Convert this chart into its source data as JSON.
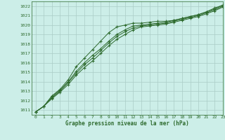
{
  "title": "Graphe pression niveau de la mer (hPa)",
  "bg_color": "#cceee8",
  "plot_bg_color": "#cceee8",
  "grid_color": "#aaccc6",
  "line_color": "#2d6a2d",
  "xlim": [
    -0.5,
    23
  ],
  "ylim": [
    1010.5,
    1022.5
  ],
  "yticks": [
    1011,
    1012,
    1013,
    1014,
    1015,
    1016,
    1017,
    1018,
    1019,
    1020,
    1021,
    1022
  ],
  "xticks": [
    0,
    1,
    2,
    3,
    4,
    5,
    6,
    7,
    8,
    9,
    10,
    11,
    12,
    13,
    14,
    15,
    16,
    17,
    18,
    19,
    20,
    21,
    22,
    23
  ],
  "lines": [
    [
      1010.8,
      1011.4,
      1012.5,
      1013.2,
      1014.2,
      1015.6,
      1016.5,
      1017.4,
      1018.3,
      1019.2,
      1019.8,
      1020.0,
      1020.2,
      1020.2,
      1020.3,
      1020.4,
      1020.4,
      1020.5,
      1020.7,
      1020.9,
      1021.1,
      1021.4,
      1021.8,
      1022.1
    ],
    [
      1010.8,
      1011.4,
      1012.4,
      1013.1,
      1014.0,
      1015.1,
      1016.0,
      1016.8,
      1017.5,
      1018.3,
      1019.0,
      1019.5,
      1019.9,
      1020.0,
      1020.1,
      1020.2,
      1020.3,
      1020.5,
      1020.7,
      1020.9,
      1021.1,
      1021.4,
      1021.7,
      1022.1
    ],
    [
      1010.8,
      1011.4,
      1012.3,
      1013.0,
      1013.9,
      1014.9,
      1015.8,
      1016.5,
      1017.3,
      1018.1,
      1018.8,
      1019.3,
      1019.7,
      1019.9,
      1020.0,
      1020.1,
      1020.2,
      1020.4,
      1020.6,
      1020.8,
      1021.0,
      1021.3,
      1021.6,
      1022.0
    ],
    [
      1010.8,
      1011.4,
      1012.2,
      1012.9,
      1013.7,
      1014.7,
      1015.5,
      1016.2,
      1017.0,
      1017.8,
      1018.5,
      1019.0,
      1019.5,
      1019.8,
      1019.9,
      1020.0,
      1020.1,
      1020.3,
      1020.5,
      1020.7,
      1020.9,
      1021.2,
      1021.5,
      1021.9
    ]
  ]
}
